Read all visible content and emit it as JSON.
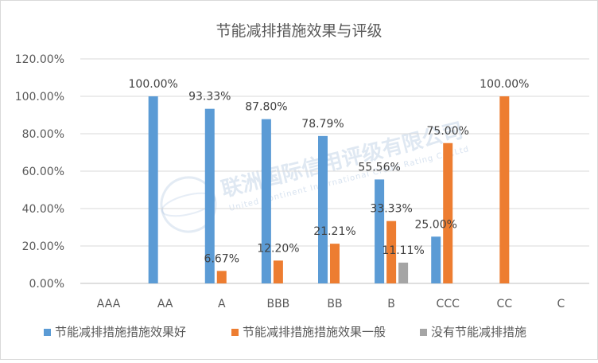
{
  "chart_data": {
    "type": "bar",
    "title": "节能减排措施效果与评级",
    "categories": [
      "AAA",
      "AA",
      "A",
      "BBB",
      "BB",
      "B",
      "CCC",
      "CC",
      "C"
    ],
    "ylim": [
      0,
      120
    ],
    "yticks": [
      "0.00%",
      "20.00%",
      "40.00%",
      "60.00%",
      "80.00%",
      "100.00%",
      "120.00%"
    ],
    "grid": true,
    "legend_position": "bottom",
    "series": [
      {
        "name": "节能减排措施措施效果好",
        "color": "#5b9bd5",
        "values": [
          null,
          100.0,
          93.33,
          87.8,
          78.79,
          55.56,
          25.0,
          null,
          null
        ],
        "labels": [
          null,
          "100.00%",
          "93.33%",
          "87.80%",
          "78.79%",
          "55.56%",
          "25.00%",
          null,
          null
        ]
      },
      {
        "name": "节能减排措施措施效果一般",
        "color": "#ed7d31",
        "values": [
          null,
          null,
          6.67,
          12.2,
          21.21,
          33.33,
          75.0,
          100.0,
          null
        ],
        "labels": [
          null,
          null,
          "6.67%",
          "12.20%",
          "21.21%",
          "33.33%",
          "75.00%",
          "100.00%",
          null
        ]
      },
      {
        "name": "没有节能减排措施",
        "color": "#a5a5a5",
        "values": [
          null,
          null,
          null,
          null,
          null,
          11.11,
          null,
          null,
          null
        ],
        "labels": [
          null,
          null,
          null,
          null,
          null,
          "11.11%",
          null,
          null,
          null
        ]
      }
    ]
  },
  "watermark": {
    "text_cn": "联洲国际信用评级有限公司",
    "text_en": "United Continent International Credit Rating Co.,Ltd"
  }
}
